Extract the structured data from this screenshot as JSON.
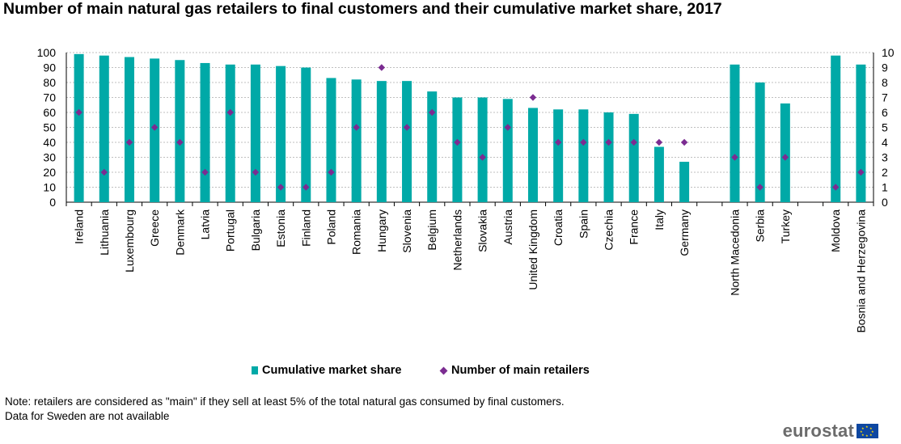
{
  "title": "Number of main natural gas retailers to final customers and their cumulative market share, 2017",
  "colors": {
    "bar": "#00a9a7",
    "marker": "#7b2c91",
    "grid": "#bfbfbf"
  },
  "chart_data": {
    "type": "bar",
    "categories": [
      "Ireland",
      "Lithuania",
      "Luxembourg",
      "Greece",
      "Denmark",
      "Latvia",
      "Portugal",
      "Bulgaria",
      "Estonia",
      "Finland",
      "Poland",
      "Romania",
      "Hungary",
      "Slovenia",
      "Belgium",
      "Netherlands",
      "Slovakia",
      "Austria",
      "United Kingdom",
      "Croatia",
      "Spain",
      "Czechia",
      "France",
      "Italy",
      "Germany",
      "",
      "North Macedonia",
      "Serbia",
      "Turkey",
      "",
      "Moldova",
      "Bosnia and Herzegovina"
    ],
    "series": [
      {
        "name": "Cumulative market share",
        "type": "bar",
        "axis": "left",
        "values": [
          99,
          98,
          97,
          96,
          95,
          93,
          92,
          92,
          91,
          90,
          83,
          82,
          81,
          81,
          74,
          70,
          70,
          69,
          63,
          62,
          62,
          60,
          59,
          37,
          27,
          null,
          92,
          80,
          66,
          null,
          98,
          92
        ]
      },
      {
        "name": "Number of main retailers",
        "type": "scatter",
        "marker": "diamond",
        "axis": "right",
        "values": [
          6,
          2,
          4,
          5,
          4,
          2,
          6,
          2,
          1,
          1,
          2,
          5,
          9,
          5,
          6,
          4,
          3,
          5,
          7,
          4,
          4,
          4,
          4,
          4,
          4,
          null,
          3,
          1,
          3,
          null,
          1,
          2
        ]
      }
    ],
    "y_left": {
      "min": 0,
      "max": 100,
      "ticks": [
        "0",
        "10",
        "20",
        "30",
        "40",
        "50",
        "60",
        "70",
        "80",
        "90",
        "100"
      ]
    },
    "y_right": {
      "min": 0,
      "max": 10,
      "ticks": [
        "0",
        "1",
        "2",
        "3",
        "4",
        "5",
        "6",
        "7",
        "8",
        "9",
        "10"
      ]
    },
    "grid": true,
    "legend_position": "bottom-center"
  },
  "legend": {
    "bar_label": "Cumulative market share",
    "marker_label": "Number of main retailers"
  },
  "notes": {
    "line1": "Note: retailers are considered as \"main\" if they sell at least 5% of the total natural gas consumed by final customers.",
    "line2": "Data for Sweden are not available"
  },
  "logo": {
    "text": "eurostat"
  }
}
